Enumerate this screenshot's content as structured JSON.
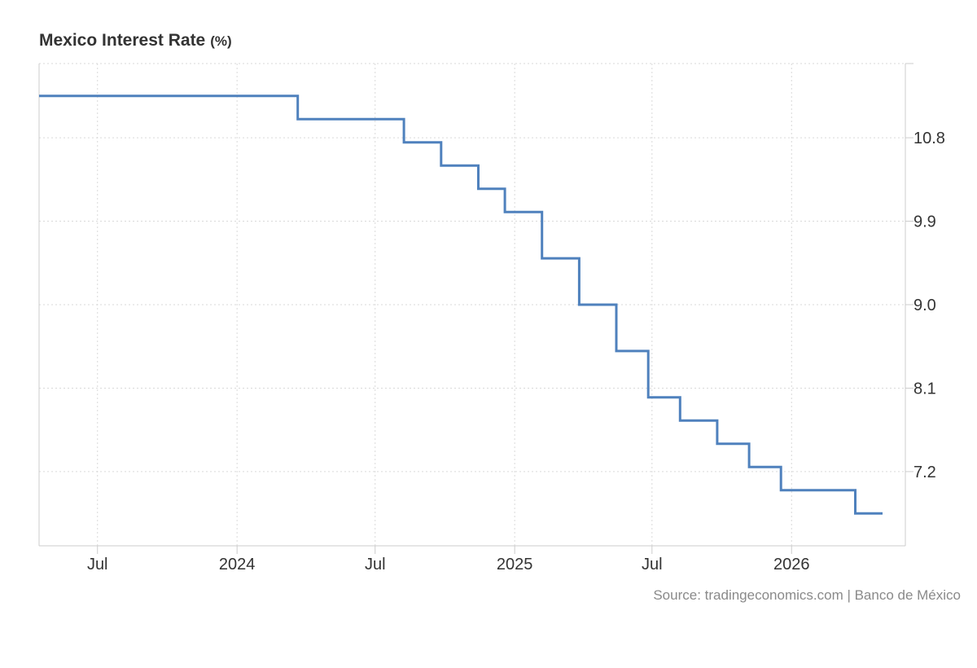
{
  "header": {
    "title": "Mexico Interest Rate",
    "unit": "(%)"
  },
  "source": "Source: tradingeconomics.com | Banco de México",
  "colors": {
    "line": "#4f81bd",
    "grid": "#d9d9d9",
    "axis": "#cccccc",
    "text": "#333333",
    "source": "#8a8a8a"
  },
  "chart_data": {
    "type": "line",
    "step": true,
    "title": "Mexico Interest Rate",
    "unit": "(%)",
    "x_axis": {
      "type": "date",
      "range": [
        "2023-04-15",
        "2026-05-31"
      ],
      "ticks": [
        {
          "date": "2023-07-01",
          "label": "Jul"
        },
        {
          "date": "2024-01-01",
          "label": "2024"
        },
        {
          "date": "2024-07-01",
          "label": "Jul"
        },
        {
          "date": "2025-01-01",
          "label": "2025"
        },
        {
          "date": "2025-07-01",
          "label": "Jul"
        },
        {
          "date": "2026-01-01",
          "label": "2026"
        }
      ]
    },
    "y_axis": {
      "position": "right",
      "range": [
        6.4,
        11.6
      ],
      "ticks": [
        7.2,
        8.1,
        9.0,
        9.9,
        10.8
      ],
      "tick_labels": [
        "7.2",
        "8.1",
        "9.0",
        "9.9",
        "10.8"
      ]
    },
    "grid": true,
    "series": [
      {
        "color": "#4f81bd",
        "points": [
          {
            "x": "2023-04-15",
            "y": 11.25
          },
          {
            "x": "2024-03-21",
            "y": 11.0
          },
          {
            "x": "2024-08-08",
            "y": 10.75
          },
          {
            "x": "2024-09-26",
            "y": 10.5
          },
          {
            "x": "2024-11-14",
            "y": 10.25
          },
          {
            "x": "2024-12-19",
            "y": 10.0
          },
          {
            "x": "2025-02-06",
            "y": 9.5
          },
          {
            "x": "2025-03-27",
            "y": 9.0
          },
          {
            "x": "2025-05-15",
            "y": 8.5
          },
          {
            "x": "2025-06-26",
            "y": 8.0
          },
          {
            "x": "2025-08-07",
            "y": 7.75
          },
          {
            "x": "2025-09-25",
            "y": 7.5
          },
          {
            "x": "2025-11-06",
            "y": 7.25
          },
          {
            "x": "2025-12-18",
            "y": 7.0
          },
          {
            "x": "2026-03-26",
            "y": 6.75
          },
          {
            "x": "2026-05-01",
            "y": 6.75
          }
        ]
      }
    ]
  }
}
